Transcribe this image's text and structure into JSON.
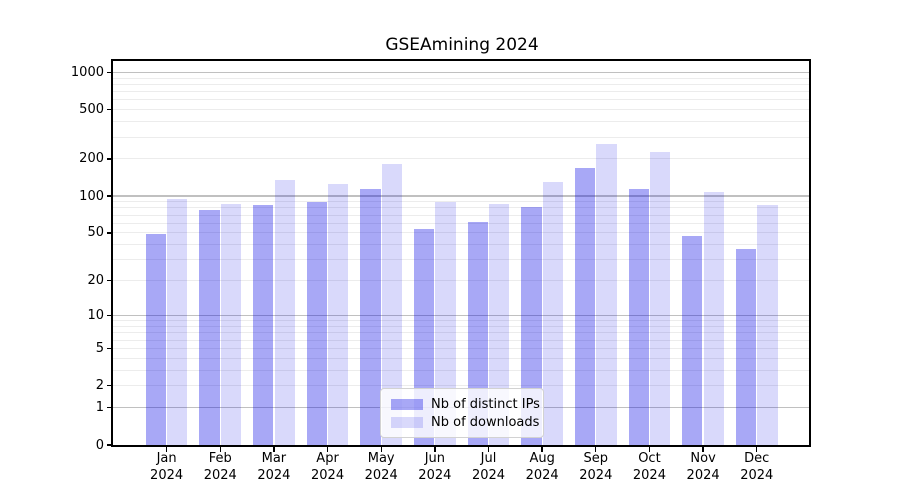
{
  "chart_data": {
    "type": "bar",
    "title": "GSEAmining 2024",
    "categories": [
      "Jan",
      "Feb",
      "Mar",
      "Apr",
      "May",
      "Jun",
      "Jul",
      "Aug",
      "Sep",
      "Oct",
      "Nov",
      "Dec"
    ],
    "x_year_label": "2024",
    "series": [
      {
        "name": "Nb of distinct IPs",
        "color": "rgba(0,0,230,0.34)",
        "values": [
          49,
          77,
          84,
          89,
          114,
          54,
          61,
          82,
          168,
          115,
          47,
          37
        ]
      },
      {
        "name": "Nb of downloads",
        "color": "rgba(0,0,230,0.15)",
        "values": [
          94,
          87,
          135,
          126,
          182,
          90,
          87,
          131,
          263,
          229,
          108,
          84
        ]
      }
    ],
    "yscale": "log1p",
    "ylim": [
      0,
      1258
    ],
    "y_ticks": [
      0,
      1,
      2,
      5,
      10,
      20,
      50,
      100,
      200,
      500,
      1000
    ],
    "y_major_gridlines": [
      1,
      10,
      100,
      1000
    ],
    "y_minor_gridlines": [
      2,
      3,
      4,
      5,
      6,
      7,
      8,
      9,
      20,
      30,
      40,
      50,
      60,
      70,
      80,
      90,
      200,
      300,
      400,
      500,
      600,
      700,
      800,
      900
    ],
    "grid": true,
    "legend_position": "lower center",
    "axis_colors": {
      "text": "#000000",
      "spine": "#000000",
      "grid_major": "#c0c0c0",
      "grid_minor": "#ececec"
    }
  }
}
